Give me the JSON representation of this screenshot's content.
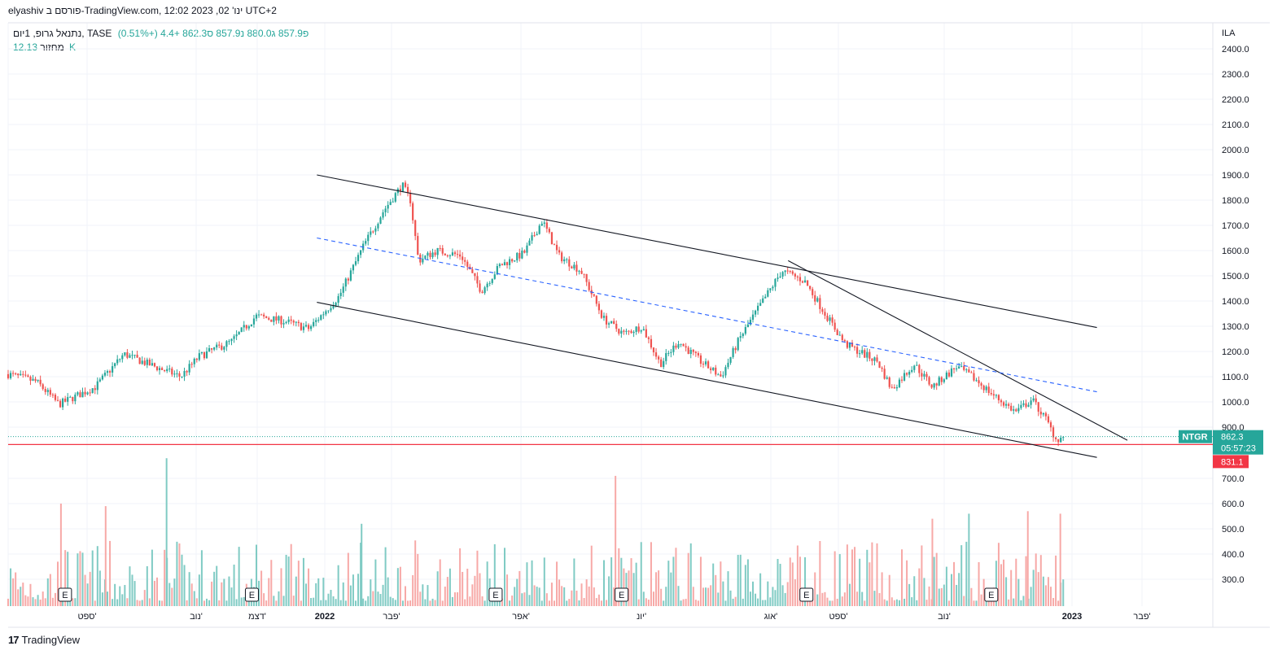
{
  "header": {
    "text": "elyashiv פורסם ב-TradingView.com, ינו' 02, 2023 12:02 UTC+2"
  },
  "symbol": {
    "name": "נתנאל גרופ, 1יום, TASE",
    "open_label": "פ",
    "open": "857.9",
    "high_label": "ג",
    "high": "880.0",
    "low_label": "נ",
    "low": "857.9",
    "close_label": "ס",
    "close": "862.3",
    "change": "+4.4 (+0.51%)"
  },
  "volume_row": {
    "label": "מחזור",
    "value": "12.13K"
  },
  "currency": "ILA",
  "price_labels": {
    "ticker": "NTGR",
    "last": "862.3",
    "countdown": "05:57:23",
    "hline": "831.1"
  },
  "colors": {
    "up": "#26a69a",
    "down": "#ef5350",
    "up_vol": "#80cbc4",
    "down_vol": "#f7a9a7",
    "hline": "#f23645",
    "dashed": "#2962ff",
    "trendline": "#131722",
    "grid": "#f0f3fa"
  },
  "earnings_marker": "E",
  "branding": "TradingView",
  "chart_data": {
    "type": "candlestick",
    "price_axis": {
      "ticks": [
        2400,
        2300,
        2200,
        2100,
        2000,
        1900,
        1800,
        1700,
        1600,
        1500,
        1400,
        1300,
        1200,
        1100,
        1000,
        900
      ],
      "tick_labels": [
        "2400.0",
        "2300.0",
        "2200.0",
        "2100.0",
        "2000.0",
        "1900.0",
        "1800.0",
        "1700.0",
        "1600.0",
        "1500.0",
        "1400.0",
        "1300.0",
        "1200.0",
        "1100.0",
        "1000.0",
        "900.0"
      ]
    },
    "volume_axis": {
      "ticks": [
        700,
        600,
        500,
        400,
        300
      ],
      "tick_labels": [
        "700.0",
        "600.0",
        "500.0",
        "400.0",
        "300.0"
      ]
    },
    "time_axis": {
      "labels": [
        "ספט'",
        "נוב'",
        "דצמ'",
        "2022",
        "פבר'",
        "אפר'",
        "יונ'",
        "אוג'",
        "ספט'",
        "נוב'",
        "2023",
        "פבר'"
      ],
      "bold": [
        false,
        false,
        false,
        true,
        false,
        false,
        false,
        false,
        false,
        false,
        true,
        false
      ],
      "dates": [
        "2021-09",
        "2021-11",
        "2021-12",
        "2022-01",
        "2022-02",
        "2022-04",
        "2022-06",
        "2022-08",
        "2022-09",
        "2022-11",
        "2023-01",
        "2023-02"
      ]
    },
    "price_path": [
      [
        "2021-08-02",
        1110
      ],
      [
        "2021-08-16",
        1080
      ],
      [
        "2021-08-27",
        990
      ],
      [
        "2021-09-14",
        1060
      ],
      [
        "2021-09-28",
        1190
      ],
      [
        "2021-10-10",
        1150
      ],
      [
        "2021-10-26",
        1100
      ],
      [
        "2021-11-04",
        1180
      ],
      [
        "2021-11-20",
        1240
      ],
      [
        "2021-12-02",
        1340
      ],
      [
        "2021-12-16",
        1320
      ],
      [
        "2021-12-28",
        1290
      ],
      [
        "2022-01-12",
        1420
      ],
      [
        "2022-01-24",
        1620
      ],
      [
        "2022-02-03",
        1760
      ],
      [
        "2022-02-12",
        1860
      ],
      [
        "2022-02-16",
        1800
      ],
      [
        "2022-02-20",
        1560
      ],
      [
        "2022-03-01",
        1600
      ],
      [
        "2022-03-13",
        1580
      ],
      [
        "2022-03-23",
        1440
      ],
      [
        "2022-04-01",
        1540
      ],
      [
        "2022-04-13",
        1590
      ],
      [
        "2022-04-22",
        1720
      ],
      [
        "2022-04-30",
        1580
      ],
      [
        "2022-05-11",
        1520
      ],
      [
        "2022-05-22",
        1330
      ],
      [
        "2022-06-01",
        1270
      ],
      [
        "2022-06-10",
        1300
      ],
      [
        "2022-06-19",
        1150
      ],
      [
        "2022-06-28",
        1240
      ],
      [
        "2022-07-09",
        1160
      ],
      [
        "2022-07-19",
        1100
      ],
      [
        "2022-07-28",
        1250
      ],
      [
        "2022-08-07",
        1380
      ],
      [
        "2022-08-18",
        1520
      ],
      [
        "2022-08-29",
        1480
      ],
      [
        "2022-09-09",
        1340
      ],
      [
        "2022-09-18",
        1230
      ],
      [
        "2022-10-04",
        1160
      ],
      [
        "2022-10-11",
        1050
      ],
      [
        "2022-10-22",
        1150
      ],
      [
        "2022-10-31",
        1060
      ],
      [
        "2022-11-12",
        1140
      ],
      [
        "2022-11-21",
        1090
      ],
      [
        "2022-12-01",
        1020
      ],
      [
        "2022-12-11",
        960
      ],
      [
        "2022-12-19",
        1010
      ],
      [
        "2022-12-26",
        930
      ],
      [
        "2022-12-31",
        850
      ],
      [
        "2023-01-04",
        862
      ]
    ],
    "last_close": 862.3,
    "hline": 831.1,
    "earnings_dates": [
      "2021-08-30",
      "2021-11-30",
      "2022-03-30",
      "2022-05-31",
      "2022-08-30",
      "2022-11-29"
    ],
    "volume_spikes": [
      [
        "2021-08-28",
        600,
        "down"
      ],
      [
        "2021-09-19",
        590,
        "down"
      ],
      [
        "2021-10-19",
        780,
        "up"
      ],
      [
        "2022-01-23",
        520,
        "up"
      ],
      [
        "2022-05-28",
        710,
        "down"
      ],
      [
        "2022-10-31",
        540,
        "down"
      ],
      [
        "2022-11-18",
        560,
        "up"
      ],
      [
        "2022-12-17",
        570,
        "down"
      ],
      [
        "2023-01-02",
        560,
        "down"
      ]
    ],
    "trendlines": [
      {
        "style": "solid",
        "from": [
          "2022-01-01",
          1900
        ],
        "to": [
          "2023-01-20",
          1295
        ]
      },
      {
        "style": "solid",
        "from": [
          "2022-01-01",
          1395
        ],
        "to": [
          "2023-01-20",
          780
        ]
      },
      {
        "style": "solid",
        "from": [
          "2022-08-21",
          1560
        ],
        "to": [
          "2023-02-04",
          848
        ]
      },
      {
        "style": "dashed",
        "from": [
          "2022-01-01",
          1650
        ],
        "to": [
          "2023-01-20",
          1040
        ]
      }
    ]
  }
}
